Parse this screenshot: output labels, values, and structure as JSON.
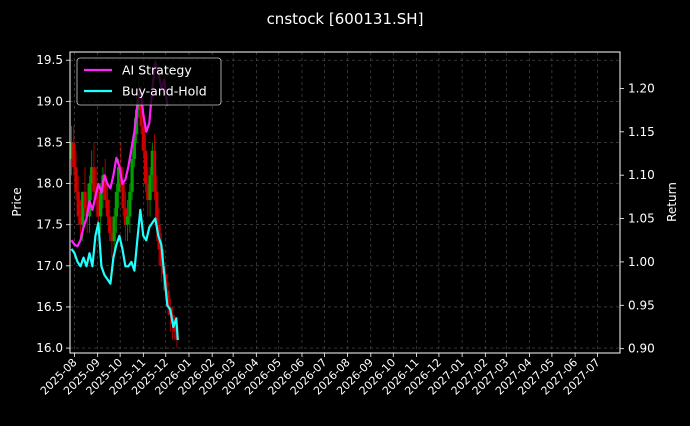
{
  "chart_data": {
    "type": "line",
    "title": "cnstock [600131.SH]",
    "xlabel": "",
    "ylabel": "Price",
    "y2label": "Return",
    "x_ticks": [
      "2025-08",
      "2025-09",
      "2025-10",
      "2025-11",
      "2025-12",
      "2026-01",
      "2026-02",
      "2026-03",
      "2026-04",
      "2026-05",
      "2026-06",
      "2026-07",
      "2026-08",
      "2026-09",
      "2026-10",
      "2026-11",
      "2026-12",
      "2027-01",
      "2027-02",
      "2027-03",
      "2027-04",
      "2027-05",
      "2027-06",
      "2027-07"
    ],
    "x_range": [
      "2025-07-26",
      "2027-07-31"
    ],
    "ylim": [
      15.94,
      19.6
    ],
    "y_ticks": [
      "16.0",
      "16.5",
      "17.0",
      "17.5",
      "18.0",
      "18.5",
      "19.0",
      "19.5"
    ],
    "y2lim": [
      0.895,
      1.242
    ],
    "y2_ticks": [
      "0.90",
      "0.95",
      "1.00",
      "1.05",
      "1.10",
      "1.15",
      "1.20"
    ],
    "grid": true,
    "legend_position": "top-left",
    "colors": {
      "background": "#000000",
      "text": "#ffffff",
      "grid": "#555555",
      "up_candle": "#00a000",
      "down_candle": "#d00000",
      "ai_strategy": "#ff22ff",
      "buy_and_hold": "#22ffff"
    },
    "series": [
      {
        "name": "AI Strategy",
        "axis": "return",
        "x": [
          "2025-07-28",
          "2025-08-01",
          "2025-08-05",
          "2025-08-09",
          "2025-08-13",
          "2025-08-17",
          "2025-08-21",
          "2025-08-25",
          "2025-08-29",
          "2025-09-02",
          "2025-09-06",
          "2025-09-10",
          "2025-09-14",
          "2025-09-18",
          "2025-09-22",
          "2025-09-26",
          "2025-09-30",
          "2025-10-04",
          "2025-10-08",
          "2025-10-12",
          "2025-10-16",
          "2025-10-20",
          "2025-10-24",
          "2025-10-28",
          "2025-11-01",
          "2025-11-05",
          "2025-11-09",
          "2025-11-13",
          "2025-11-17",
          "2025-11-21",
          "2025-11-25",
          "2025-11-29",
          "2025-12-03"
        ],
        "values": [
          1.025,
          1.02,
          1.018,
          1.025,
          1.04,
          1.05,
          1.07,
          1.06,
          1.075,
          1.09,
          1.08,
          1.1,
          1.09,
          1.085,
          1.1,
          1.12,
          1.11,
          1.09,
          1.095,
          1.11,
          1.13,
          1.15,
          1.18,
          1.2,
          1.17,
          1.15,
          1.16,
          1.2,
          1.23,
          1.22,
          1.2,
          1.21,
          1.18
        ]
      },
      {
        "name": "Buy-and-Hold",
        "axis": "return",
        "x": [
          "2025-07-28",
          "2025-08-01",
          "2025-08-05",
          "2025-08-09",
          "2025-08-13",
          "2025-08-17",
          "2025-08-21",
          "2025-08-25",
          "2025-08-29",
          "2025-09-02",
          "2025-09-06",
          "2025-09-10",
          "2025-09-14",
          "2025-09-18",
          "2025-09-22",
          "2025-09-26",
          "2025-09-30",
          "2025-10-04",
          "2025-10-08",
          "2025-10-12",
          "2025-10-16",
          "2025-10-20",
          "2025-10-24",
          "2025-10-28",
          "2025-11-01",
          "2025-11-05",
          "2025-11-09",
          "2025-11-13",
          "2025-11-17",
          "2025-11-21",
          "2025-11-25",
          "2025-11-29",
          "2025-12-03",
          "2025-12-07",
          "2025-12-11",
          "2025-12-15",
          "2025-12-17"
        ],
        "values": [
          1.015,
          1.01,
          1.0,
          0.995,
          1.005,
          0.995,
          1.01,
          0.995,
          1.03,
          1.045,
          0.995,
          0.985,
          0.98,
          0.975,
          1.005,
          1.02,
          1.03,
          1.015,
          0.995,
          0.995,
          1.0,
          0.99,
          1.025,
          1.06,
          1.03,
          1.025,
          1.04,
          1.045,
          1.05,
          1.03,
          1.02,
          0.985,
          0.95,
          0.945,
          0.925,
          0.935,
          0.91
        ]
      }
    ],
    "ohlc": {
      "dates": [
        "2025-07-28",
        "2025-07-31",
        "2025-08-03",
        "2025-08-06",
        "2025-08-09",
        "2025-08-12",
        "2025-08-15",
        "2025-08-18",
        "2025-08-21",
        "2025-08-24",
        "2025-08-27",
        "2025-08-30",
        "2025-09-02",
        "2025-09-05",
        "2025-09-08",
        "2025-09-11",
        "2025-09-14",
        "2025-09-17",
        "2025-09-20",
        "2025-09-23",
        "2025-09-26",
        "2025-09-29",
        "2025-10-02",
        "2025-10-05",
        "2025-10-08",
        "2025-10-11",
        "2025-10-14",
        "2025-10-17",
        "2025-10-20",
        "2025-10-23",
        "2025-10-26",
        "2025-10-29",
        "2025-11-01",
        "2025-11-04",
        "2025-11-07",
        "2025-11-10",
        "2025-11-13",
        "2025-11-16",
        "2025-11-19",
        "2025-11-22",
        "2025-11-25",
        "2025-11-28",
        "2025-12-01",
        "2025-12-04",
        "2025-12-07",
        "2025-12-10",
        "2025-12-13",
        "2025-12-16"
      ],
      "open": [
        18.3,
        18.5,
        18.2,
        17.9,
        17.6,
        17.5,
        17.9,
        17.7,
        17.6,
        18.0,
        18.2,
        17.9,
        17.8,
        17.6,
        17.9,
        18.1,
        17.8,
        17.6,
        17.4,
        17.3,
        17.6,
        17.9,
        18.2,
        18.0,
        17.7,
        17.5,
        17.6,
        17.9,
        18.3,
        18.6,
        18.9,
        19.0,
        18.7,
        18.4,
        18.0,
        17.8,
        18.1,
        18.4,
        17.9,
        17.5,
        17.2,
        17.0,
        16.9,
        16.7,
        16.5,
        16.4,
        16.3,
        16.2
      ],
      "high": [
        18.7,
        18.7,
        18.4,
        18.1,
        17.8,
        17.9,
        18.2,
        18.0,
        18.1,
        18.4,
        18.5,
        18.2,
        18.0,
        18.0,
        18.2,
        18.3,
        18.0,
        17.8,
        17.6,
        17.7,
        18.0,
        18.3,
        18.5,
        18.2,
        17.9,
        17.8,
        18.0,
        18.4,
        18.8,
        19.1,
        19.3,
        19.2,
        18.9,
        18.6,
        18.2,
        18.2,
        18.5,
        18.6,
        18.1,
        17.7,
        17.4,
        17.2,
        17.0,
        16.8,
        16.6,
        16.5,
        16.4,
        16.3
      ],
      "low": [
        18.1,
        18.1,
        17.8,
        17.5,
        17.3,
        17.3,
        17.6,
        17.4,
        17.4,
        17.8,
        17.8,
        17.6,
        17.4,
        17.4,
        17.7,
        17.7,
        17.5,
        17.3,
        17.1,
        17.1,
        17.4,
        17.7,
        17.9,
        17.6,
        17.3,
        17.3,
        17.4,
        17.8,
        18.2,
        18.5,
        18.8,
        18.6,
        18.3,
        17.9,
        17.6,
        17.6,
        17.9,
        17.8,
        17.3,
        17.0,
        16.8,
        16.7,
        16.6,
        16.4,
        16.2,
        16.1,
        16.1,
        16.0
      ],
      "close": [
        18.5,
        18.2,
        17.9,
        17.6,
        17.5,
        17.9,
        17.7,
        17.6,
        18.0,
        18.2,
        17.9,
        17.8,
        17.6,
        17.9,
        18.1,
        17.8,
        17.6,
        17.4,
        17.3,
        17.6,
        17.9,
        18.2,
        18.0,
        17.7,
        17.5,
        17.6,
        17.9,
        18.3,
        18.6,
        18.9,
        19.0,
        18.7,
        18.4,
        18.0,
        17.8,
        18.1,
        18.4,
        17.9,
        17.5,
        17.2,
        17.0,
        16.9,
        16.7,
        16.5,
        16.4,
        16.3,
        16.2,
        16.1
      ]
    }
  }
}
